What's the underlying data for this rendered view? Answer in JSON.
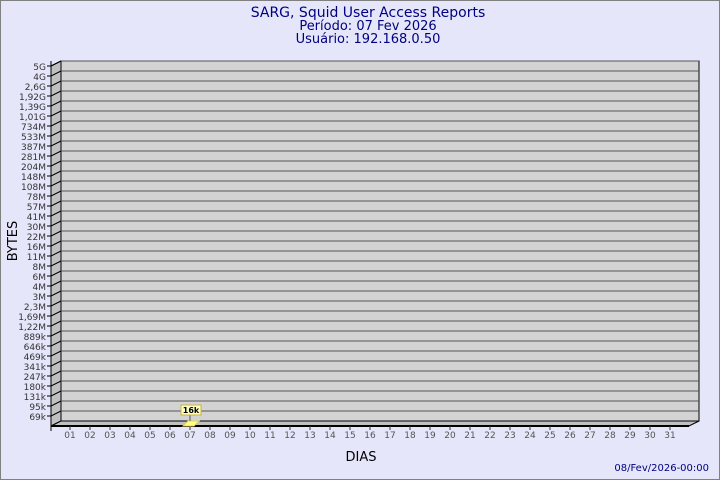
{
  "header": {
    "title": "SARG, Squid User Access Reports",
    "period": "Período: 07 Fev 2026",
    "user": "Usuário: 192.168.0.50"
  },
  "footer": {
    "timestamp": "08/Fev/2026-00:00"
  },
  "colors": {
    "background": "#e6e6fa",
    "wall": "#d3d3d3",
    "title": "#000080",
    "bar": "#ffff80"
  },
  "chart_data": {
    "type": "bar",
    "title": "SARG, Squid User Access Reports",
    "xlabel": "DIAS",
    "ylabel": "BYTES",
    "y_scale": "log",
    "grid": true,
    "y_tick_labels": [
      "5G",
      "4G",
      "2,6G",
      "1,92G",
      "1,39G",
      "1,01G",
      "734M",
      "533M",
      "387M",
      "281M",
      "204M",
      "148M",
      "108M",
      "78M",
      "57M",
      "41M",
      "30M",
      "22M",
      "16M",
      "11M",
      "8M",
      "6M",
      "4M",
      "3M",
      "2,3M",
      "1,69M",
      "1,22M",
      "889k",
      "646k",
      "469k",
      "341k",
      "247k",
      "180k",
      "131k",
      "95k",
      "69k"
    ],
    "categories": [
      "01",
      "02",
      "03",
      "04",
      "05",
      "06",
      "07",
      "08",
      "09",
      "10",
      "11",
      "12",
      "13",
      "14",
      "15",
      "16",
      "17",
      "18",
      "19",
      "20",
      "21",
      "22",
      "23",
      "24",
      "25",
      "26",
      "27",
      "28",
      "29",
      "30",
      "31"
    ],
    "series": [
      {
        "points": [
          {
            "x": "07",
            "value": 16000,
            "label": "16k"
          }
        ]
      }
    ]
  }
}
